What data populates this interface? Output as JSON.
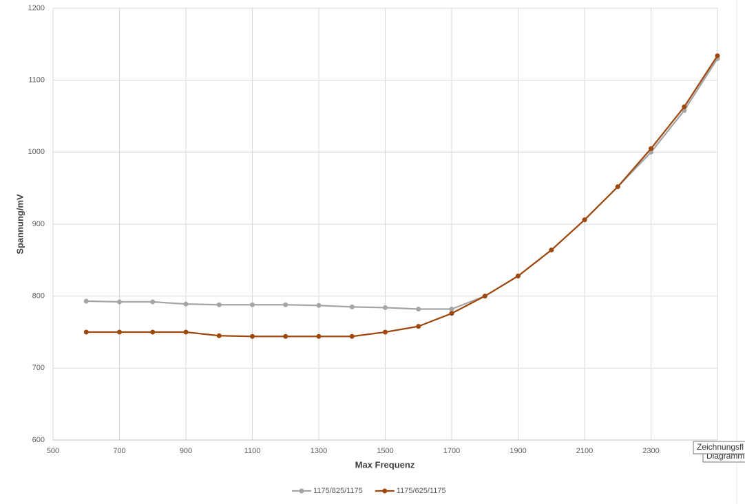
{
  "chart_data": {
    "type": "line",
    "x_label": "Max Frequenz",
    "y_label": "Spannung/mV",
    "x": [
      600,
      700,
      800,
      900,
      1000,
      1100,
      1200,
      1300,
      1400,
      1500,
      1600,
      1700,
      1800,
      1900,
      2000,
      2100,
      2200,
      2300,
      2400,
      2500
    ],
    "series": [
      {
        "name": "1175/825/1175",
        "color": "#a5a5a5",
        "values": [
          793,
          792,
          792,
          789,
          788,
          788,
          788,
          787,
          785,
          784,
          782,
          782,
          800,
          828,
          864,
          906,
          952,
          1000,
          1058,
          1130
        ]
      },
      {
        "name": "1175/625/1175",
        "color": "#9e480e",
        "values": [
          750,
          750,
          750,
          750,
          745,
          744,
          744,
          744,
          744,
          750,
          758,
          776,
          800,
          828,
          864,
          906,
          952,
          1005,
          1063,
          1134
        ]
      }
    ],
    "xlim": [
      500,
      2500
    ],
    "xticks": [
      500,
      700,
      900,
      1100,
      1300,
      1500,
      1700,
      1900,
      2100,
      2300
    ],
    "ylim": [
      600,
      1200
    ],
    "yticks": [
      600,
      700,
      800,
      900,
      1000,
      1100,
      1200
    ],
    "grid": true,
    "legend": "bottom",
    "tooltip": [
      "Zeichnungsfl",
      "Diagramm"
    ]
  }
}
